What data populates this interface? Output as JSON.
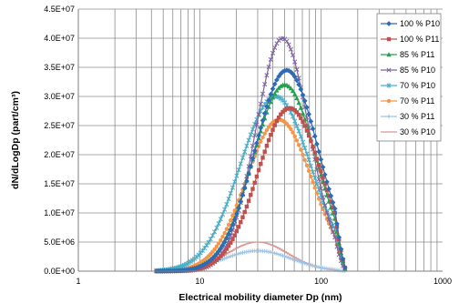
{
  "chart_data": {
    "type": "line",
    "xlabel": "Electrical mobility diameter Dp (nm)",
    "ylabel": "dN/dLogDp (part/cm³)",
    "x_scale": "log",
    "xlim": [
      1,
      1000
    ],
    "ylim": [
      0,
      45000000
    ],
    "x_ticks": [
      {
        "value": 1,
        "label": "1"
      },
      {
        "value": 10,
        "label": "10"
      },
      {
        "value": 100,
        "label": "100"
      },
      {
        "value": 1000,
        "label": "1000"
      }
    ],
    "y_ticks": [
      {
        "value": 0,
        "label": "0.0E+00"
      },
      {
        "value": 5000000,
        "label": "5.0E+06"
      },
      {
        "value": 10000000,
        "label": "1.0E+07"
      },
      {
        "value": 15000000,
        "label": "1.5E+07"
      },
      {
        "value": 20000000,
        "label": "2.0E+07"
      },
      {
        "value": 25000000,
        "label": "2.5E+07"
      },
      {
        "value": 30000000,
        "label": "3.0E+07"
      },
      {
        "value": 35000000,
        "label": "3.5E+07"
      },
      {
        "value": 40000000,
        "label": "4.0E+07"
      },
      {
        "value": 45000000,
        "label": "4.5E+07"
      }
    ],
    "grid": true,
    "legend_position": "top-right",
    "series": [
      {
        "name": "100 % P10",
        "color": "#2e6bb5",
        "marker": "diamond",
        "peak_x": 52,
        "peak_y": 34500000,
        "sigma": 0.26
      },
      {
        "name": "100 % P11",
        "color": "#c0504d",
        "marker": "square",
        "peak_x": 55,
        "peak_y": 28000000,
        "sigma": 0.26
      },
      {
        "name": "85 % P11",
        "color": "#22a050",
        "marker": "triangle",
        "peak_x": 50,
        "peak_y": 32000000,
        "sigma": 0.26
      },
      {
        "name": "85 % P10",
        "color": "#7e649e",
        "marker": "x",
        "peak_x": 48,
        "peak_y": 40000000,
        "sigma": 0.22
      },
      {
        "name": "70 % P10",
        "color": "#4bacc6",
        "marker": "star",
        "peak_x": 42,
        "peak_y": 30000000,
        "sigma": 0.29
      },
      {
        "name": "70 % P11",
        "color": "#f79646",
        "marker": "circle",
        "peak_x": 45,
        "peak_y": 26000000,
        "sigma": 0.27
      },
      {
        "name": "30 % P11",
        "color": "#9dc3e6",
        "marker": "plus",
        "peak_x": 30,
        "peak_y": 3500000,
        "sigma": 0.28
      },
      {
        "name": "30 % P10",
        "color": "#d99694",
        "marker": "dash",
        "peak_x": 30,
        "peak_y": 5000000,
        "sigma": 0.25
      }
    ]
  }
}
